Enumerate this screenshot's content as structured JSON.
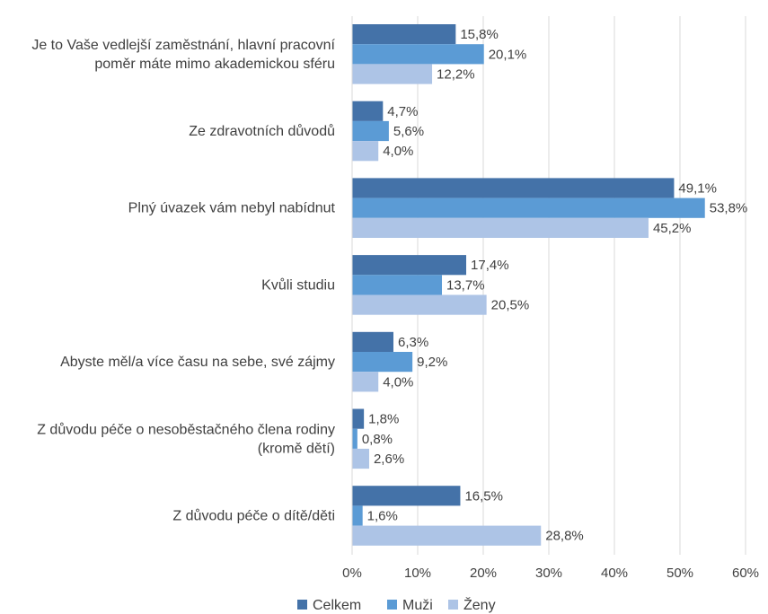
{
  "chart_data": {
    "type": "bar",
    "orientation": "horizontal",
    "categories": [
      [
        "Je to Vaše vedlejší zaměstnání, hlavní pracovní",
        "poměr máte mimo akademickou sféru"
      ],
      [
        "Ze zdravotních důvodů"
      ],
      [
        "Plný úvazek vám nebyl nabídnut"
      ],
      [
        "Kvůli studiu"
      ],
      [
        "Abyste měl/a více času na sebe, své zájmy"
      ],
      [
        "Z důvodu péče o nesoběstačného člena rodiny",
        "(kromě dětí)"
      ],
      [
        "Z důvodu péče o dítě/děti"
      ]
    ],
    "series": [
      {
        "name": "Celkem",
        "color": "#4472a8",
        "values": [
          15.8,
          4.7,
          49.1,
          17.4,
          6.3,
          1.8,
          16.5
        ],
        "labels": [
          "15,8%",
          "4,7%",
          "49,1%",
          "17,4%",
          "6,3%",
          "1,8%",
          "16,5%"
        ]
      },
      {
        "name": "Muži",
        "color": "#5b9bd5",
        "values": [
          20.1,
          5.6,
          53.8,
          13.7,
          9.2,
          0.8,
          1.6
        ],
        "labels": [
          "20,1%",
          "5,6%",
          "53,8%",
          "13,7%",
          "9,2%",
          "0,8%",
          "1,6%"
        ]
      },
      {
        "name": "Ženy",
        "color": "#adc4e6",
        "values": [
          12.2,
          4.0,
          45.2,
          20.5,
          4.0,
          2.6,
          28.8
        ],
        "labels": [
          "12,2%",
          "4,0%",
          "45,2%",
          "20,5%",
          "4,0%",
          "2,6%",
          "28,8%"
        ]
      }
    ],
    "xlim": [
      0,
      60
    ],
    "xticks": [
      0,
      10,
      20,
      30,
      40,
      50,
      60
    ],
    "xtick_labels": [
      "0%",
      "10%",
      "20%",
      "30%",
      "40%",
      "50%",
      "60%"
    ],
    "grid": true,
    "legend_position": "bottom",
    "title": "",
    "xlabel": "",
    "ylabel": ""
  }
}
